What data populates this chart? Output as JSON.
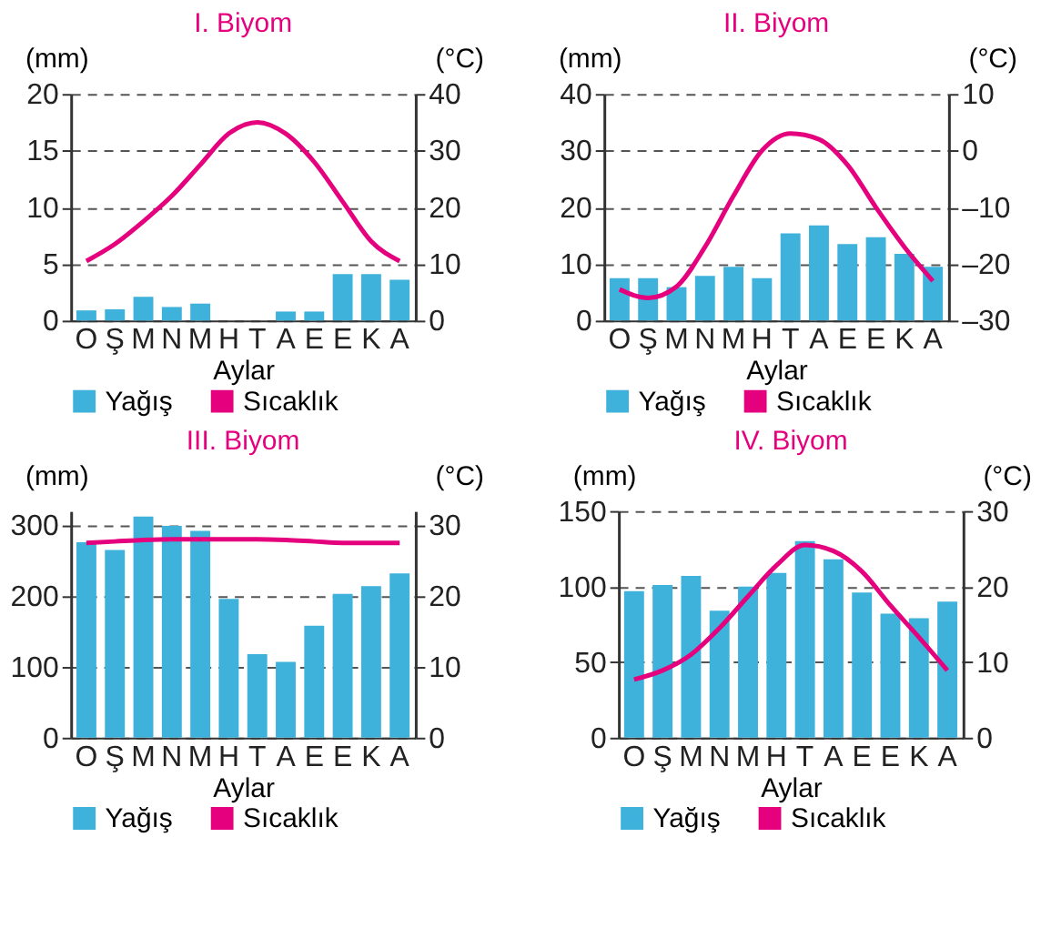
{
  "chart_data": [
    {
      "type": "bar",
      "title": "I. Biyom",
      "xlabel": "Aylar",
      "ylabel": "(mm)",
      "y2label": "(°C)",
      "categories": [
        "O",
        "Ş",
        "M",
        "N",
        "M",
        "H",
        "T",
        "A",
        "E",
        "E",
        "K",
        "A"
      ],
      "series": [
        {
          "name": "Yağış",
          "color": "#3fb2dc",
          "values": [
            0.9,
            1.0,
            2.1,
            1.2,
            1.5,
            0,
            0,
            0.8,
            0.8,
            4.1,
            4.1,
            3.6
          ]
        },
        {
          "name": "Sıcaklık",
          "type": "line",
          "axis": "y2",
          "color": "#e5007d",
          "values": [
            10.5,
            13.5,
            17.5,
            22,
            27.5,
            33,
            35,
            33,
            28,
            21,
            14,
            10.5
          ]
        }
      ],
      "ylim": [
        0,
        20
      ],
      "yticks": [
        0,
        5,
        10,
        15,
        20
      ],
      "y2lim": [
        0,
        40
      ],
      "y2ticks": [
        0,
        10,
        20,
        30,
        40
      ],
      "grid": "y",
      "legend": "bottom"
    },
    {
      "type": "bar",
      "title": "II. Biyom",
      "xlabel": "Aylar",
      "ylabel": "(mm)",
      "y2label": "(°C)",
      "categories": [
        "O",
        "Ş",
        "M",
        "N",
        "M",
        "H",
        "T",
        "A",
        "E",
        "E",
        "K",
        "A"
      ],
      "series": [
        {
          "name": "Yağış",
          "color": "#3fb2dc",
          "values": [
            7.5,
            7.5,
            5.9,
            7.9,
            9.5,
            7.5,
            15.4,
            16.8,
            13.5,
            14.7,
            11.8,
            9.5
          ]
        },
        {
          "name": "Sıcaklık",
          "type": "line",
          "axis": "y2",
          "color": "#e5007d",
          "values": [
            -24.5,
            -26,
            -24,
            -17,
            -8,
            0,
            3,
            2,
            -2.5,
            -10,
            -17,
            -23
          ]
        }
      ],
      "ylim": [
        0,
        40
      ],
      "yticks": [
        0,
        10,
        20,
        30,
        40
      ],
      "y2lim": [
        -30,
        10
      ],
      "y2ticks": [
        {
          "value": -30,
          "label": "–30"
        },
        {
          "value": -20,
          "label": "–20"
        },
        {
          "value": -10,
          "label": "–10"
        },
        0,
        10
      ],
      "grid": "y",
      "legend": "bottom"
    },
    {
      "type": "bar",
      "title": "III. Biyom",
      "xlabel": "Aylar",
      "ylabel": "(mm)",
      "y2label": "(°C)",
      "categories": [
        "O",
        "Ş",
        "M",
        "N",
        "M",
        "H",
        "T",
        "A",
        "E",
        "E",
        "K",
        "A"
      ],
      "series": [
        {
          "name": "Yağış",
          "color": "#3fb2dc",
          "values": [
            276,
            265,
            312,
            299,
            292,
            196,
            118,
            107,
            158,
            203,
            214,
            232
          ]
        },
        {
          "name": "Sıcaklık",
          "type": "line",
          "axis": "y2",
          "color": "#e5007d",
          "values": [
            27.5,
            27.7,
            27.9,
            28,
            28,
            28,
            28,
            27.9,
            27.7,
            27.5,
            27.5,
            27.5
          ]
        }
      ],
      "ylim": [
        0,
        320
      ],
      "yticks": [
        0,
        100,
        200,
        300
      ],
      "y2lim": [
        0,
        32
      ],
      "y2ticks": [
        0,
        10,
        20,
        30
      ],
      "grid": "y",
      "legend": "bottom"
    },
    {
      "type": "bar",
      "title": "IV. Biyom",
      "xlabel": "Aylar",
      "ylabel": "(mm)",
      "y2label": "(°C)",
      "categories": [
        "O",
        "Ş",
        "M",
        "N",
        "M",
        "H",
        "T",
        "A",
        "E",
        "E",
        "K",
        "A"
      ],
      "series": [
        {
          "name": "Yağış",
          "color": "#3fb2dc",
          "values": [
            97,
            101,
            107,
            84,
            100,
            109,
            130,
            118,
            96,
            82,
            79,
            90
          ]
        },
        {
          "name": "Sıcaklık",
          "type": "line",
          "axis": "y2",
          "color": "#e5007d",
          "values": [
            7.7,
            8.9,
            11,
            14.5,
            18.7,
            22.8,
            25.5,
            24.7,
            22,
            17.5,
            13.3,
            8.9
          ]
        }
      ],
      "ylim": [
        0,
        150
      ],
      "yticks": [
        0,
        50,
        100,
        150
      ],
      "y2lim": [
        0,
        30
      ],
      "y2ticks": [
        0,
        10,
        20,
        30
      ],
      "grid": "y",
      "legend": "bottom"
    }
  ]
}
